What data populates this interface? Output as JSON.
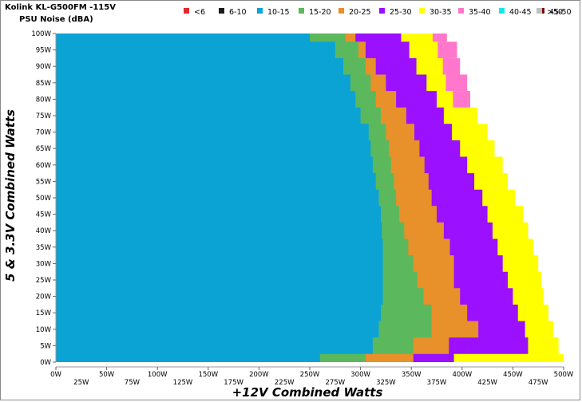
{
  "chart_data": {
    "type": "heatmap",
    "title": "Kolink KL-G500FM -115V",
    "subtitle": "PSU Noise (dBA)",
    "xlabel": "+12V Combined Watts",
    "ylabel": "5 & 3.3V Combined Watts",
    "xlim": [
      0,
      500
    ],
    "ylim": [
      0,
      100
    ],
    "x_ticks_upper": [
      "0W",
      "50W",
      "100W",
      "150W",
      "200W",
      "250W",
      "300W",
      "350W",
      "400W",
      "450W",
      "500W"
    ],
    "x_ticks_lower": [
      "25W",
      "75W",
      "125W",
      "175W",
      "225W",
      "275W",
      "325W",
      "375W",
      "425W",
      "475W"
    ],
    "y_ticks": [
      "0W",
      "5W",
      "10W",
      "15W",
      "20W",
      "25W",
      "30W",
      "35W",
      "40W",
      "45W",
      "50W",
      "55W",
      "60W",
      "65W",
      "70W",
      "75W",
      "80W",
      "85W",
      "90W",
      "95W",
      "100W"
    ],
    "legend": [
      {
        "label": "<6",
        "color": "#e8262b"
      },
      {
        "label": "6-10",
        "color": "#1a1a1a"
      },
      {
        "label": "10-15",
        "color": "#0ba3d4"
      },
      {
        "label": "15-20",
        "color": "#5cb85c"
      },
      {
        "label": "20-25",
        "color": "#e8902a"
      },
      {
        "label": "25-30",
        "color": "#9a10ff"
      },
      {
        "label": "30-35",
        "color": "#ffff00"
      },
      {
        "label": "35-40",
        "color": "#ff77cc"
      },
      {
        "label": "40-45",
        "color": "#13e8e8"
      },
      {
        "label": "45-50",
        "color": "#7a0a0a"
      },
      {
        "label": ">50",
        "color": "#c0c0c0"
      }
    ],
    "band_upper_edges": {
      "y_values": [
        0,
        5,
        10,
        15,
        20,
        25,
        30,
        35,
        40,
        45,
        50,
        55,
        60,
        65,
        70,
        75,
        80,
        85,
        90,
        95,
        100
      ],
      "10-15": [
        260,
        312,
        318,
        320,
        322,
        322,
        322,
        322,
        321,
        320,
        318,
        315,
        312,
        310,
        308,
        300,
        295,
        290,
        283,
        275,
        250
      ],
      "15-20": [
        305,
        352,
        370,
        370,
        362,
        356,
        352,
        347,
        343,
        338,
        335,
        333,
        330,
        328,
        325,
        320,
        315,
        310,
        305,
        298,
        285
      ],
      "20-25": [
        352,
        387,
        416,
        405,
        398,
        392,
        392,
        388,
        382,
        375,
        370,
        367,
        363,
        358,
        353,
        345,
        335,
        325,
        315,
        305,
        295
      ],
      "25-30": [
        392,
        465,
        462,
        455,
        450,
        445,
        440,
        435,
        430,
        425,
        420,
        412,
        405,
        398,
        390,
        382,
        375,
        365,
        355,
        348,
        340
      ],
      "30-35": [
        500,
        495,
        490,
        485,
        480,
        478,
        475,
        470,
        465,
        460,
        452,
        445,
        440,
        432,
        425,
        415,
        405,
        398,
        395,
        390,
        385
      ],
      "35-40": [
        0,
        0,
        0,
        0,
        0,
        0,
        0,
        0,
        0,
        0,
        0,
        0,
        0,
        0,
        0,
        0,
        408,
        405,
        398,
        395,
        385
      ]
    }
  }
}
